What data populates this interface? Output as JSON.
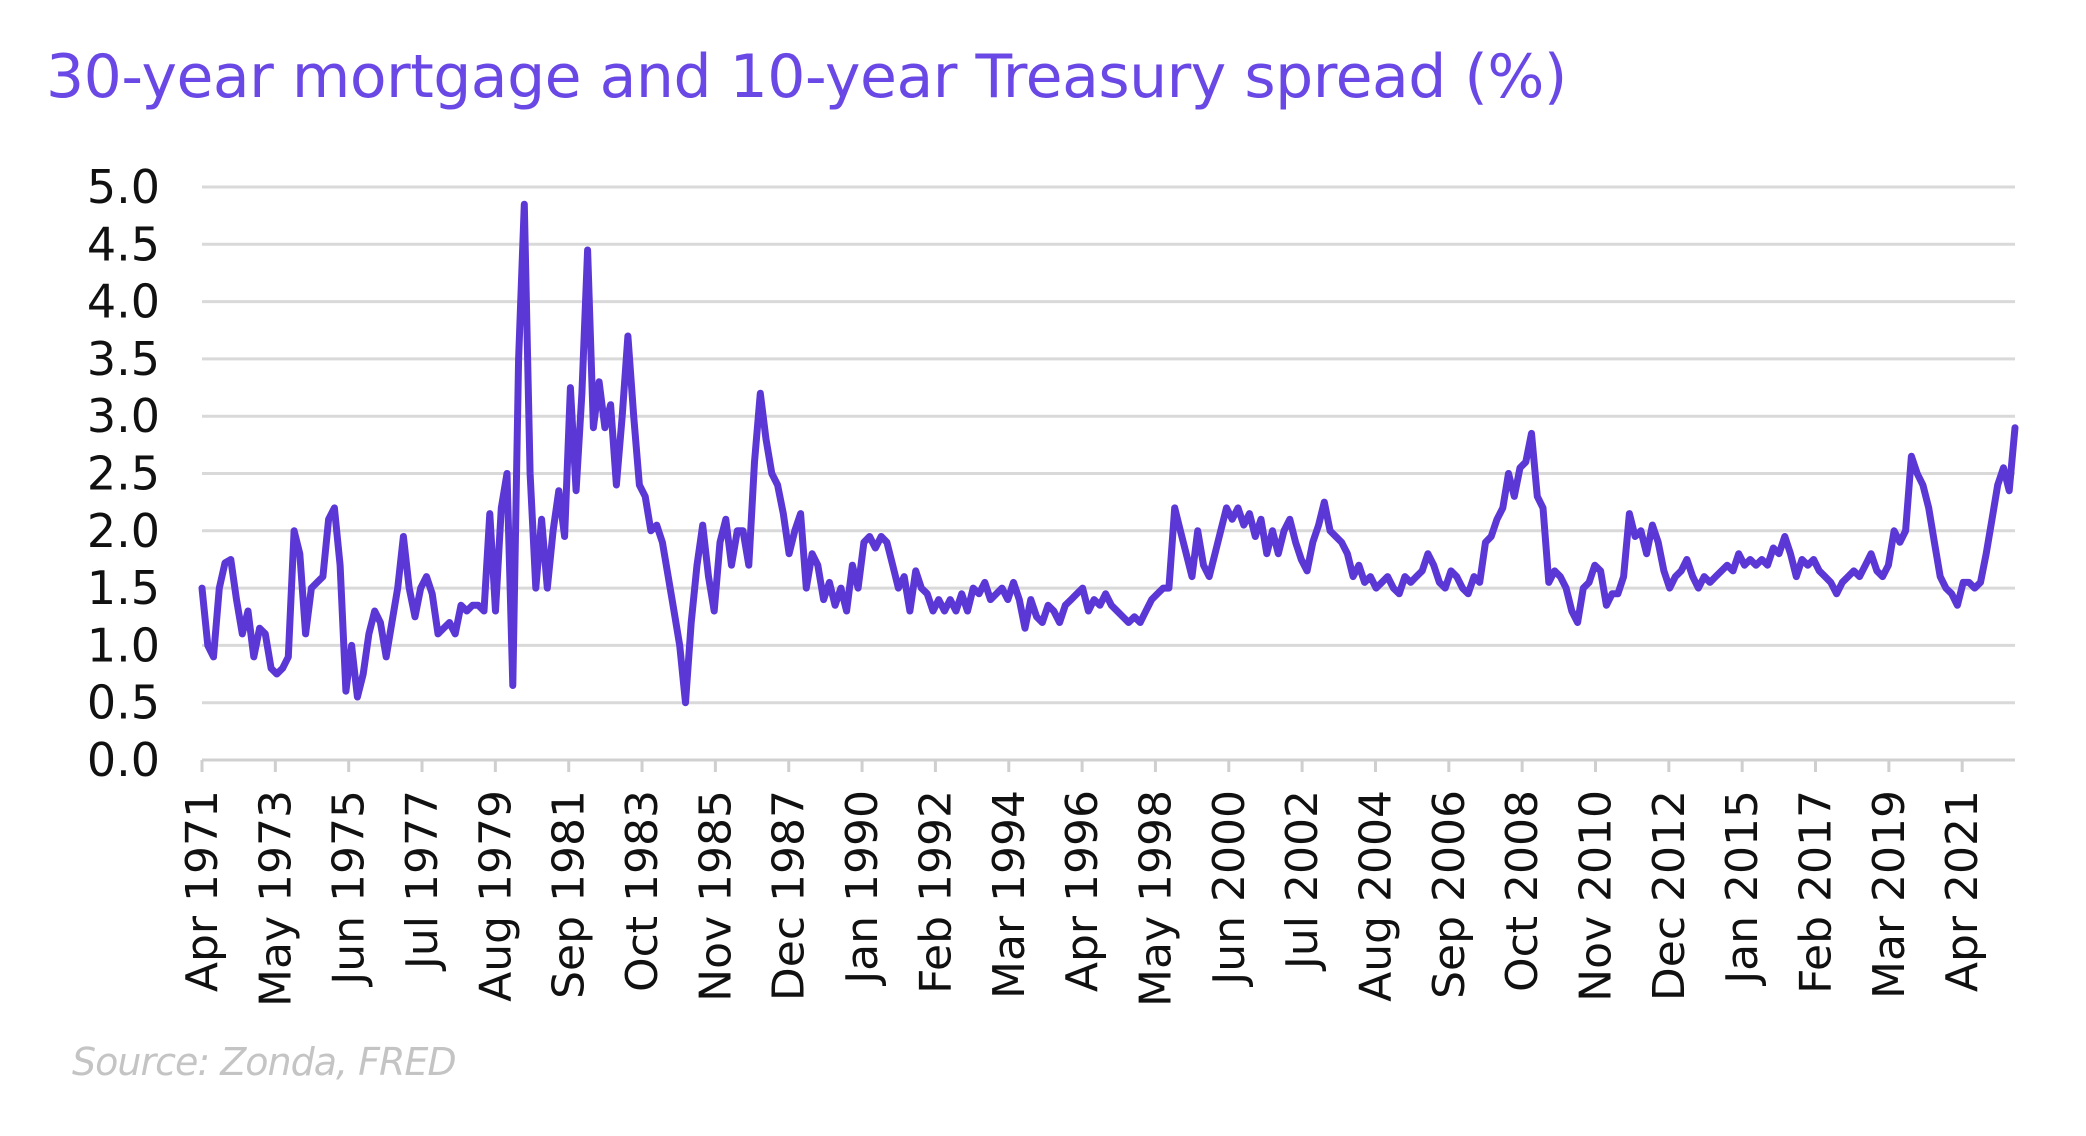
{
  "chart_data": {
    "type": "line",
    "title": "30-year mortgage and 10-year Treasury spread (%)",
    "source": "Source: Zonda, FRED",
    "xlabel": "",
    "ylabel": "",
    "ylim": [
      0,
      5
    ],
    "yticks": [
      "0.0",
      "0.5",
      "1.0",
      "1.5",
      "2.0",
      "2.5",
      "3.0",
      "3.5",
      "4.0",
      "4.5",
      "5.0"
    ],
    "x_start": "1971-04",
    "x_end": "2022-10",
    "x_tick_interval_months": 25,
    "xticks": [
      "Apr 1971",
      "May 1973",
      "Jun 1975",
      "Jul 1977",
      "Aug 1979",
      "Sep 1981",
      "Oct 1983",
      "Nov 1985",
      "Dec 1987",
      "Jan 1990",
      "Feb 1992",
      "Mar 1994",
      "Apr 1996",
      "May 1998",
      "Jun 2000",
      "Jul 2002",
      "Aug 2004",
      "Sep 2006",
      "Oct 2008",
      "Nov 2010",
      "Dec 2012",
      "Jan 2015",
      "Feb 2017",
      "Mar 2019",
      "Apr 2021"
    ],
    "grid": true,
    "legend": "none",
    "line_color": "#5b38d6",
    "values": [
      1.5,
      1.0,
      0.9,
      1.5,
      1.72,
      1.75,
      1.4,
      1.1,
      1.3,
      0.9,
      1.15,
      1.1,
      0.8,
      0.75,
      0.8,
      0.9,
      2.0,
      1.8,
      1.1,
      1.5,
      1.55,
      1.6,
      2.1,
      2.2,
      1.7,
      0.6,
      1.0,
      0.55,
      0.75,
      1.1,
      1.3,
      1.2,
      0.9,
      1.2,
      1.5,
      1.95,
      1.5,
      1.25,
      1.5,
      1.6,
      1.45,
      1.1,
      1.15,
      1.2,
      1.1,
      1.35,
      1.3,
      1.35,
      1.35,
      1.3,
      2.15,
      1.3,
      2.2,
      2.5,
      0.65,
      3.5,
      4.85,
      2.5,
      1.5,
      2.1,
      1.5,
      2.0,
      2.35,
      1.95,
      3.25,
      2.35,
      3.2,
      4.45,
      2.9,
      3.3,
      2.9,
      3.1,
      2.4,
      3.0,
      3.7,
      3.0,
      2.4,
      2.3,
      2.0,
      2.05,
      1.9,
      1.6,
      1.3,
      1.0,
      0.5,
      1.2,
      1.7,
      2.05,
      1.6,
      1.3,
      1.9,
      2.1,
      1.7,
      2.0,
      2.0,
      1.7,
      2.6,
      3.2,
      2.8,
      2.5,
      2.4,
      2.15,
      1.8,
      2.0,
      2.15,
      1.5,
      1.8,
      1.7,
      1.4,
      1.55,
      1.35,
      1.5,
      1.3,
      1.7,
      1.5,
      1.9,
      1.95,
      1.85,
      1.95,
      1.9,
      1.7,
      1.5,
      1.6,
      1.3,
      1.65,
      1.5,
      1.45,
      1.3,
      1.4,
      1.3,
      1.4,
      1.3,
      1.45,
      1.3,
      1.5,
      1.45,
      1.55,
      1.4,
      1.45,
      1.5,
      1.4,
      1.55,
      1.4,
      1.15,
      1.4,
      1.25,
      1.2,
      1.35,
      1.3,
      1.2,
      1.35,
      1.4,
      1.45,
      1.5,
      1.3,
      1.4,
      1.35,
      1.45,
      1.35,
      1.3,
      1.25,
      1.2,
      1.25,
      1.2,
      1.3,
      1.4,
      1.45,
      1.5,
      1.5,
      2.2,
      2.0,
      1.8,
      1.6,
      2.0,
      1.7,
      1.6,
      1.8,
      2.0,
      2.2,
      2.1,
      2.2,
      2.05,
      2.15,
      1.95,
      2.1,
      1.8,
      2.0,
      1.8,
      2.0,
      2.1,
      1.9,
      1.75,
      1.65,
      1.9,
      2.05,
      2.25,
      2.0,
      1.95,
      1.9,
      1.8,
      1.6,
      1.7,
      1.55,
      1.6,
      1.5,
      1.55,
      1.6,
      1.5,
      1.45,
      1.6,
      1.55,
      1.6,
      1.65,
      1.8,
      1.7,
      1.55,
      1.5,
      1.65,
      1.6,
      1.5,
      1.45,
      1.6,
      1.55,
      1.9,
      1.95,
      2.1,
      2.2,
      2.5,
      2.3,
      2.55,
      2.6,
      2.85,
      2.3,
      2.2,
      1.55,
      1.65,
      1.6,
      1.5,
      1.3,
      1.2,
      1.5,
      1.55,
      1.7,
      1.65,
      1.35,
      1.45,
      1.45,
      1.6,
      2.15,
      1.95,
      2.0,
      1.8,
      2.05,
      1.9,
      1.65,
      1.5,
      1.6,
      1.65,
      1.75,
      1.6,
      1.5,
      1.6,
      1.55,
      1.6,
      1.65,
      1.7,
      1.65,
      1.8,
      1.7,
      1.75,
      1.7,
      1.75,
      1.7,
      1.85,
      1.8,
      1.95,
      1.8,
      1.6,
      1.75,
      1.7,
      1.75,
      1.65,
      1.6,
      1.55,
      1.45,
      1.55,
      1.6,
      1.65,
      1.6,
      1.7,
      1.8,
      1.65,
      1.6,
      1.7,
      2.0,
      1.9,
      2.0,
      2.65,
      2.5,
      2.4,
      2.2,
      1.9,
      1.6,
      1.5,
      1.45,
      1.35,
      1.55,
      1.55,
      1.5,
      1.55,
      1.8,
      2.1,
      2.4,
      2.55,
      2.35,
      2.9
    ]
  }
}
